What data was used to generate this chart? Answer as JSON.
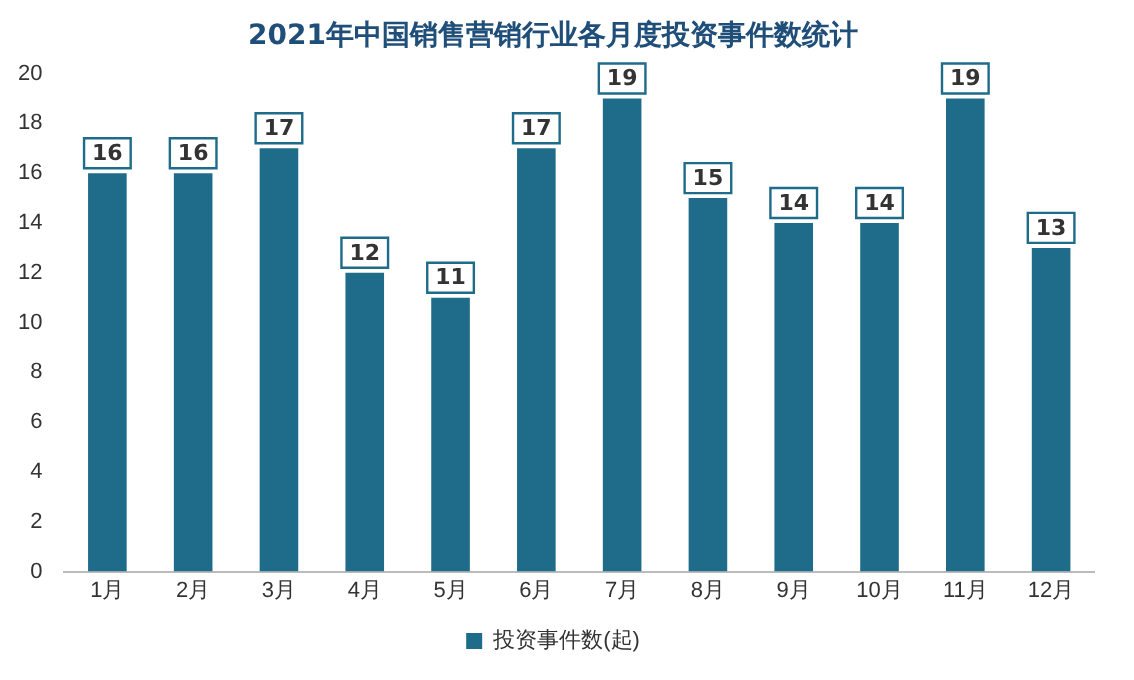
{
  "chart_data": {
    "type": "bar",
    "title": "2021年中国销售营销行业各月度投资事件数统计",
    "categories": [
      "1月",
      "2月",
      "3月",
      "4月",
      "5月",
      "6月",
      "7月",
      "8月",
      "9月",
      "10月",
      "11月",
      "12月"
    ],
    "series": [
      {
        "name": "投资事件数(起)",
        "color": "#1f6b8a",
        "values": [
          16,
          16,
          17,
          12,
          11,
          17,
          19,
          15,
          14,
          14,
          19,
          13
        ]
      }
    ],
    "ylim": [
      0,
      20
    ],
    "yticks": [
      0,
      2,
      4,
      6,
      8,
      10,
      12,
      14,
      16,
      18,
      20
    ],
    "grid": false,
    "legend": "bottom",
    "data_labels": true
  }
}
